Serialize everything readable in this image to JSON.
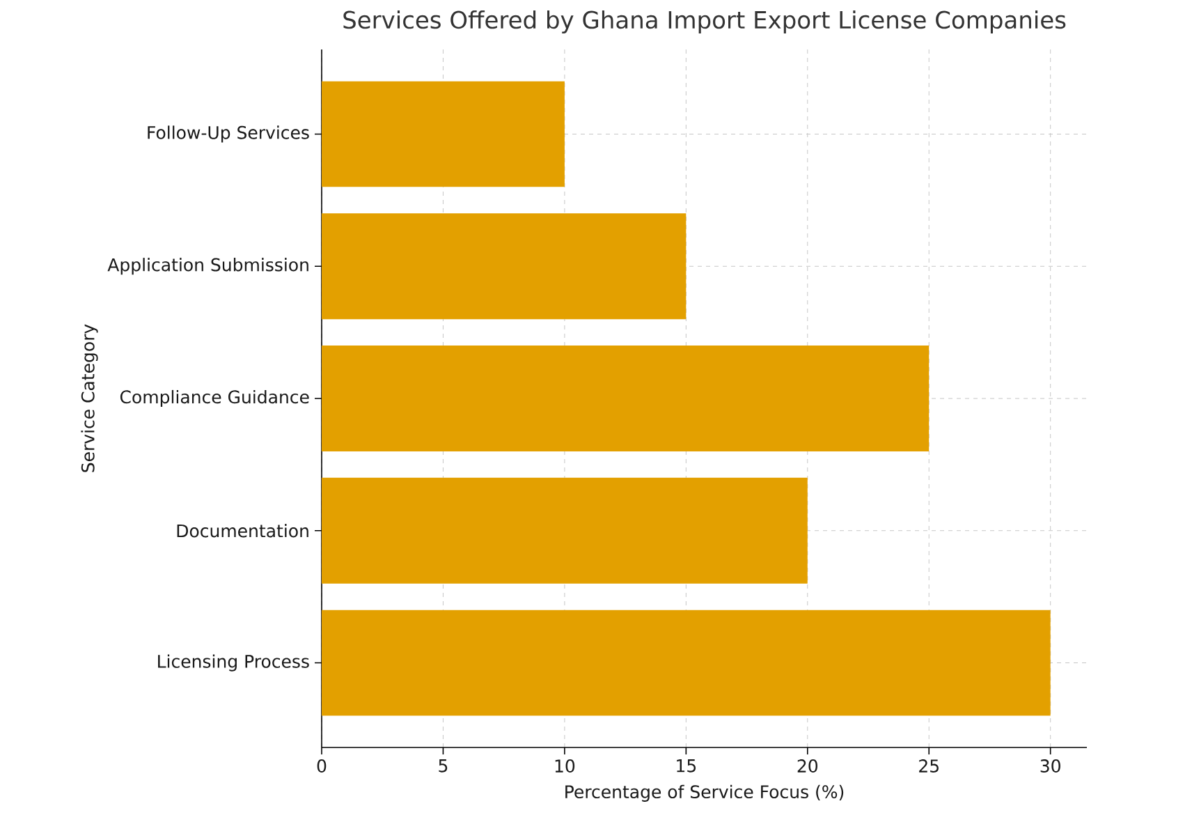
{
  "chart_data": {
    "type": "bar",
    "orientation": "horizontal",
    "title": "Services Offered by Ghana Import Export License Companies",
    "xlabel": "Percentage of Service Focus (%)",
    "ylabel": "Service Category",
    "categories": [
      "Follow-Up Services",
      "Application Submission",
      "Compliance Guidance",
      "Documentation",
      "Licensing Process"
    ],
    "values": [
      10,
      15,
      25,
      20,
      30
    ],
    "color": "#e3a000",
    "xlim": [
      0,
      31.5
    ],
    "xticks": [
      0,
      5,
      10,
      15,
      20,
      25,
      30
    ],
    "grid": true
  }
}
